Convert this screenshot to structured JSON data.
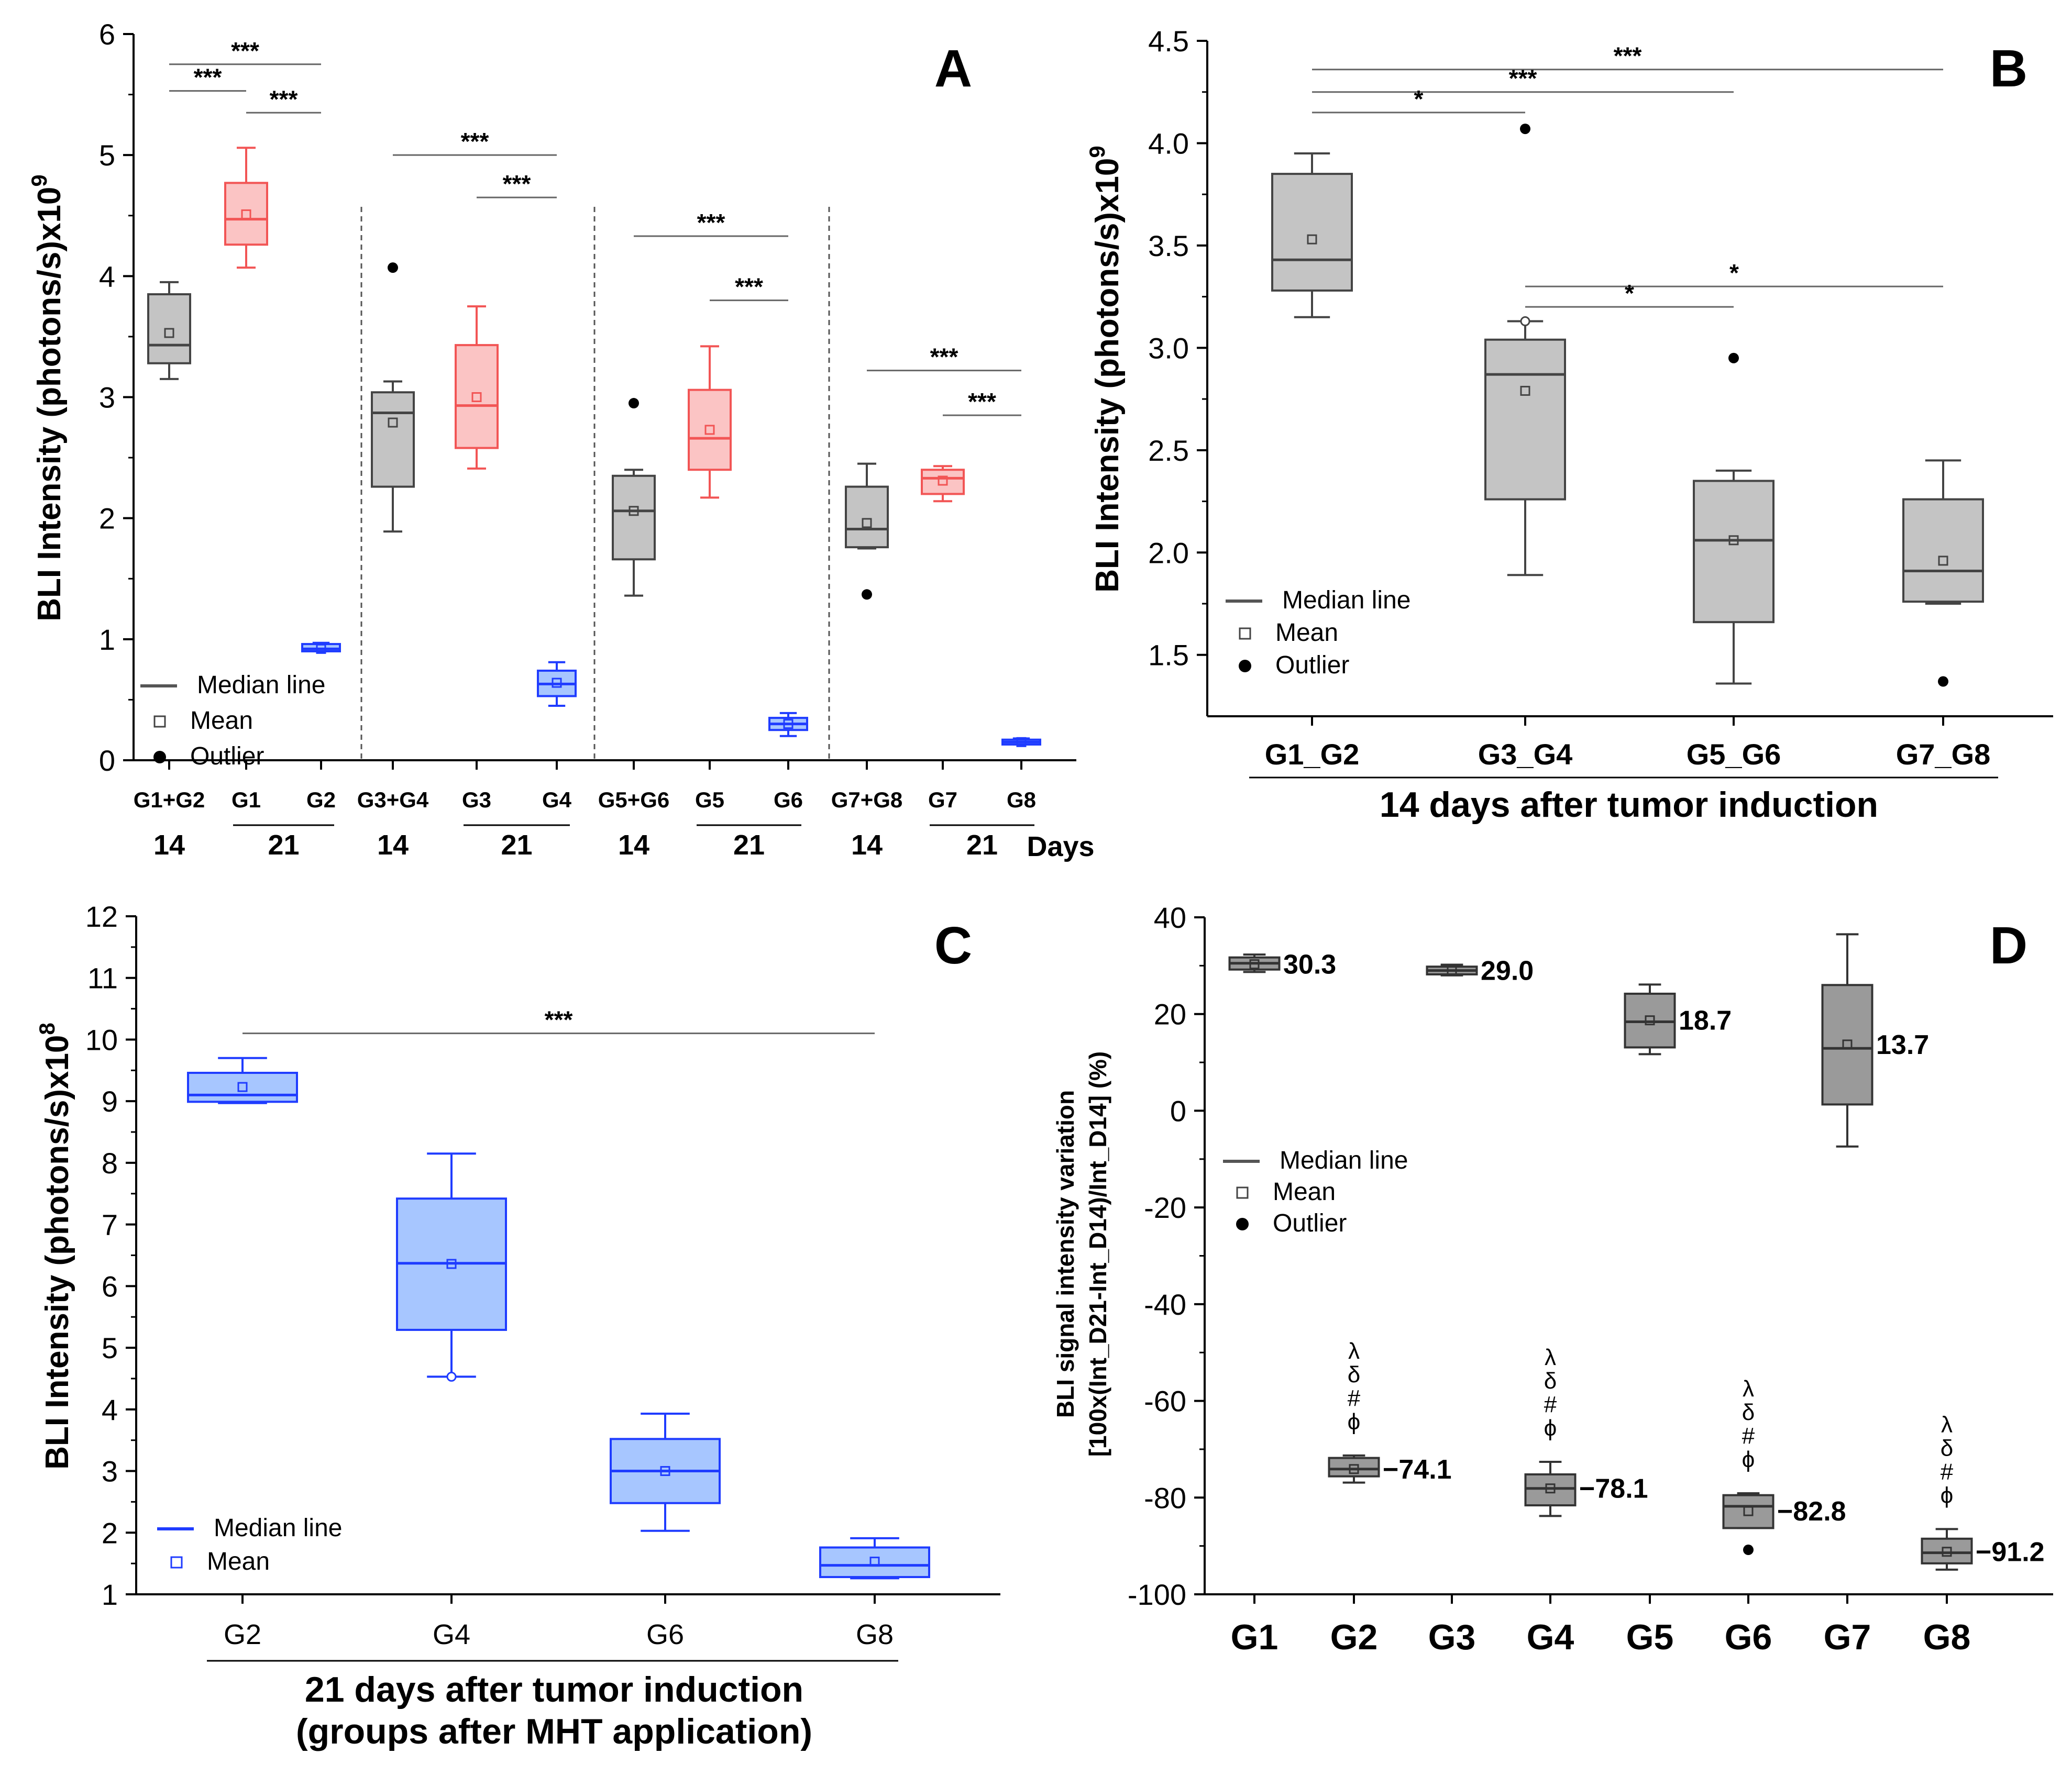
{
  "colors": {
    "gray_fill": "#c4c4c4",
    "gray_stroke": "#444444",
    "red_fill": "#fbc4c4",
    "red_stroke": "#f25555",
    "blue_fill": "#a7c6ff",
    "blue_stroke": "#1f3cff",
    "dark_fill": "#9a9a9a",
    "axis": "#000000"
  },
  "chart_data": [
    {
      "panel": "A",
      "type": "box",
      "ylabel": "BLI Intensity (photons/s)x10",
      "ylabel_exp": "9",
      "ylim": [
        0,
        6
      ],
      "yticks": [
        "0",
        "1",
        "2",
        "3",
        "4",
        "5",
        "6"
      ],
      "boxes": [
        {
          "label": "G1+G2",
          "color": "gray",
          "min": 3.15,
          "q1": 3.28,
          "median": 3.43,
          "q3": 3.85,
          "max": 3.95,
          "mean": 3.53
        },
        {
          "label": "G1",
          "color": "red",
          "min": 4.07,
          "q1": 4.26,
          "median": 4.47,
          "q3": 4.77,
          "max": 5.06,
          "mean": 4.51
        },
        {
          "label": "G2",
          "color": "blue",
          "min": 0.9,
          "q1": 0.9,
          "median": 0.92,
          "q3": 0.96,
          "max": 0.97,
          "mean": 0.92
        },
        {
          "label": "G3+G4",
          "color": "gray",
          "min": 1.89,
          "q1": 2.26,
          "median": 2.87,
          "q3": 3.04,
          "max": 3.13,
          "mean": 2.79,
          "outliers": [
            4.07
          ]
        },
        {
          "label": "G3",
          "color": "red",
          "min": 2.41,
          "q1": 2.58,
          "median": 2.93,
          "q3": 3.43,
          "max": 3.75,
          "mean": 3.0
        },
        {
          "label": "G4",
          "color": "blue",
          "min": 0.45,
          "q1": 0.53,
          "median": 0.63,
          "q3": 0.74,
          "max": 0.81,
          "mean": 0.64
        },
        {
          "label": "G5+G6",
          "color": "gray",
          "min": 1.36,
          "q1": 1.66,
          "median": 2.06,
          "q3": 2.35,
          "max": 2.4,
          "mean": 2.06,
          "outliers": [
            2.95
          ]
        },
        {
          "label": "G5",
          "color": "red",
          "min": 2.17,
          "q1": 2.4,
          "median": 2.66,
          "q3": 3.06,
          "max": 3.42,
          "mean": 2.73
        },
        {
          "label": "G6",
          "color": "blue",
          "min": 0.2,
          "q1": 0.25,
          "median": 0.3,
          "q3": 0.35,
          "max": 0.39,
          "mean": 0.3
        },
        {
          "label": "G7+G8",
          "color": "gray",
          "min": 1.75,
          "q1": 1.76,
          "median": 1.91,
          "q3": 2.26,
          "max": 2.45,
          "mean": 1.96,
          "outliers": [
            1.37
          ]
        },
        {
          "label": "G7",
          "color": "red",
          "min": 2.14,
          "q1": 2.2,
          "median": 2.33,
          "q3": 2.4,
          "max": 2.43,
          "mean": 2.31
        },
        {
          "label": "G8",
          "color": "blue",
          "min": 0.13,
          "q1": 0.13,
          "median": 0.15,
          "q3": 0.17,
          "max": 0.18,
          "mean": 0.15
        }
      ],
      "day_labels": [
        "14",
        "21",
        "14",
        "21",
        "14",
        "21",
        "14",
        "21"
      ],
      "days_word": "Days",
      "significance": [
        {
          "from": "G1+G2",
          "to": "G2",
          "y": 5.75,
          "text": "***"
        },
        {
          "from": "G1+G2",
          "to": "G1",
          "y": 5.53,
          "text": "***"
        },
        {
          "from": "G1",
          "to": "G2",
          "y": 5.35,
          "text": "***"
        },
        {
          "from": "G3+G4",
          "to": "G4",
          "y": 5.0,
          "text": "***"
        },
        {
          "from": "G3",
          "to": "G4",
          "y": 4.65,
          "text": "***"
        },
        {
          "from": "G5+G6",
          "to": "G6",
          "y": 4.33,
          "text": "***"
        },
        {
          "from": "G5",
          "to": "G6",
          "y": 3.8,
          "text": "***"
        },
        {
          "from": "G7+G8",
          "to": "G8",
          "y": 3.22,
          "text": "***"
        },
        {
          "from": "G7",
          "to": "G8",
          "y": 2.85,
          "text": "***"
        }
      ],
      "legend": [
        "Median line",
        "Mean",
        "Outlier"
      ],
      "panel_letter": "A"
    },
    {
      "panel": "B",
      "type": "box",
      "xlabel": "14 days after tumor induction",
      "ylabel": "BLI Intensity (photons/s)x10",
      "ylabel_exp": "9",
      "ylim": [
        1.2,
        4.5
      ],
      "yticks": [
        "1.5",
        "2.0",
        "2.5",
        "3.0",
        "3.5",
        "4.0",
        "4.5"
      ],
      "boxes": [
        {
          "label": "G1_G2",
          "min": 3.15,
          "q1": 3.28,
          "median": 3.43,
          "q3": 3.85,
          "max": 3.95,
          "mean": 3.53
        },
        {
          "label": "G3_G4",
          "min": 1.89,
          "q1": 2.26,
          "median": 2.87,
          "q3": 3.04,
          "max": 3.13,
          "mean": 2.79,
          "outliers": [
            4.07
          ]
        },
        {
          "label": "G5_G6",
          "min": 1.36,
          "q1": 1.66,
          "median": 2.06,
          "q3": 2.35,
          "max": 2.4,
          "mean": 2.06,
          "outliers": [
            2.95
          ]
        },
        {
          "label": "G7_G8",
          "min": 1.75,
          "q1": 1.76,
          "median": 1.91,
          "q3": 2.26,
          "max": 2.45,
          "mean": 1.96,
          "outliers": [
            1.37
          ]
        }
      ],
      "significance": [
        {
          "from": "G1_G2",
          "to": "G7_G8",
          "y": 4.36,
          "text": "***"
        },
        {
          "from": "G1_G2",
          "to": "G5_G6",
          "y": 4.25,
          "text": "***"
        },
        {
          "from": "G1_G2",
          "to": "G3_G4",
          "y": 4.15,
          "text": "*"
        },
        {
          "from": "G3_G4",
          "to": "G7_G8",
          "y": 3.3,
          "text": "*"
        },
        {
          "from": "G3_G4",
          "to": "G5_G6",
          "y": 3.2,
          "text": "*"
        }
      ],
      "legend": [
        "Median line",
        "Mean",
        "Outlier"
      ],
      "panel_letter": "B"
    },
    {
      "panel": "C",
      "type": "box",
      "xlabel": "21 days after tumor induction",
      "xlabel2": "(groups after MHT application)",
      "ylabel": "BLI Intensity (photons/s)x10",
      "ylabel_exp": "8",
      "ylim": [
        1,
        12
      ],
      "yticks": [
        "1",
        "2",
        "3",
        "4",
        "5",
        "6",
        "7",
        "8",
        "9",
        "10",
        "11",
        "12"
      ],
      "boxes": [
        {
          "label": "G2",
          "min": 8.97,
          "q1": 8.99,
          "median": 9.1,
          "q3": 9.46,
          "max": 9.7,
          "mean": 9.23
        },
        {
          "label": "G4",
          "min": 4.53,
          "q1": 5.29,
          "median": 6.37,
          "q3": 7.42,
          "max": 8.15,
          "mean": 6.36
        },
        {
          "label": "G6",
          "min": 2.03,
          "q1": 2.48,
          "median": 3.0,
          "q3": 3.52,
          "max": 3.93,
          "mean": 3.0
        },
        {
          "label": "G8",
          "min": 1.26,
          "q1": 1.28,
          "median": 1.47,
          "q3": 1.76,
          "max": 1.91,
          "mean": 1.53
        }
      ],
      "significance": [
        {
          "from": "G2",
          "to": "G8",
          "y": 10.1,
          "text": "***"
        }
      ],
      "legend": [
        "Median line",
        "Mean"
      ],
      "panel_letter": "C"
    },
    {
      "panel": "D",
      "type": "box",
      "ylabel": "BLI signal intensity variation",
      "ylabel2": "[100x(Int_D21-Int_D14)/Int_D14] (%)",
      "ylim": [
        -100,
        40
      ],
      "yticks": [
        "-100",
        "-80",
        "-60",
        "-40",
        "-20",
        "0",
        "20",
        "40"
      ],
      "boxes": [
        {
          "label": "G1",
          "min": 28.7,
          "q1": 29.2,
          "median": 30.5,
          "q3": 31.7,
          "max": 32.3,
          "mean": 30.3,
          "value_label": "30.3"
        },
        {
          "label": "G2",
          "min": -76.9,
          "q1": -75.6,
          "median": -74.1,
          "q3": -71.8,
          "max": -71.3,
          "mean": -74.1,
          "value_label": "−74.1",
          "markers": [
            "λ",
            "δ",
            "#",
            "ϕ"
          ]
        },
        {
          "label": "G3",
          "min": 28.0,
          "q1": 28.2,
          "median": 29.0,
          "q3": 29.8,
          "max": 30.2,
          "mean": 29.0,
          "value_label": "29.0"
        },
        {
          "label": "G4",
          "min": -83.8,
          "q1": -81.6,
          "median": -78.1,
          "q3": -75.2,
          "max": -72.6,
          "mean": -78.1,
          "value_label": "−78.1",
          "markers": [
            "λ",
            "δ",
            "#",
            "ϕ"
          ]
        },
        {
          "label": "G5",
          "min": 11.7,
          "q1": 13.1,
          "median": 18.4,
          "q3": 24.2,
          "max": 26.1,
          "mean": 18.7,
          "value_label": "18.7"
        },
        {
          "label": "G6",
          "min": -86.3,
          "q1": -86.3,
          "median": -81.8,
          "q3": -79.5,
          "max": -79.1,
          "mean": -82.8,
          "value_label": "−82.8",
          "markers": [
            "λ",
            "δ",
            "#",
            "ϕ"
          ],
          "outliers": [
            -90.8
          ]
        },
        {
          "label": "G7",
          "min": -7.4,
          "q1": 1.3,
          "median": 12.9,
          "q3": 26.0,
          "max": 36.5,
          "mean": 13.7,
          "value_label": "13.7"
        },
        {
          "label": "G8",
          "min": -94.9,
          "q1": -93.6,
          "median": -91.4,
          "q3": -88.5,
          "max": -86.5,
          "mean": -91.2,
          "value_label": "−91.2",
          "markers": [
            "λ",
            "δ",
            "#",
            "ϕ"
          ]
        }
      ],
      "legend": [
        "Median line",
        "Mean",
        "Outlier"
      ],
      "panel_letter": "D"
    }
  ]
}
